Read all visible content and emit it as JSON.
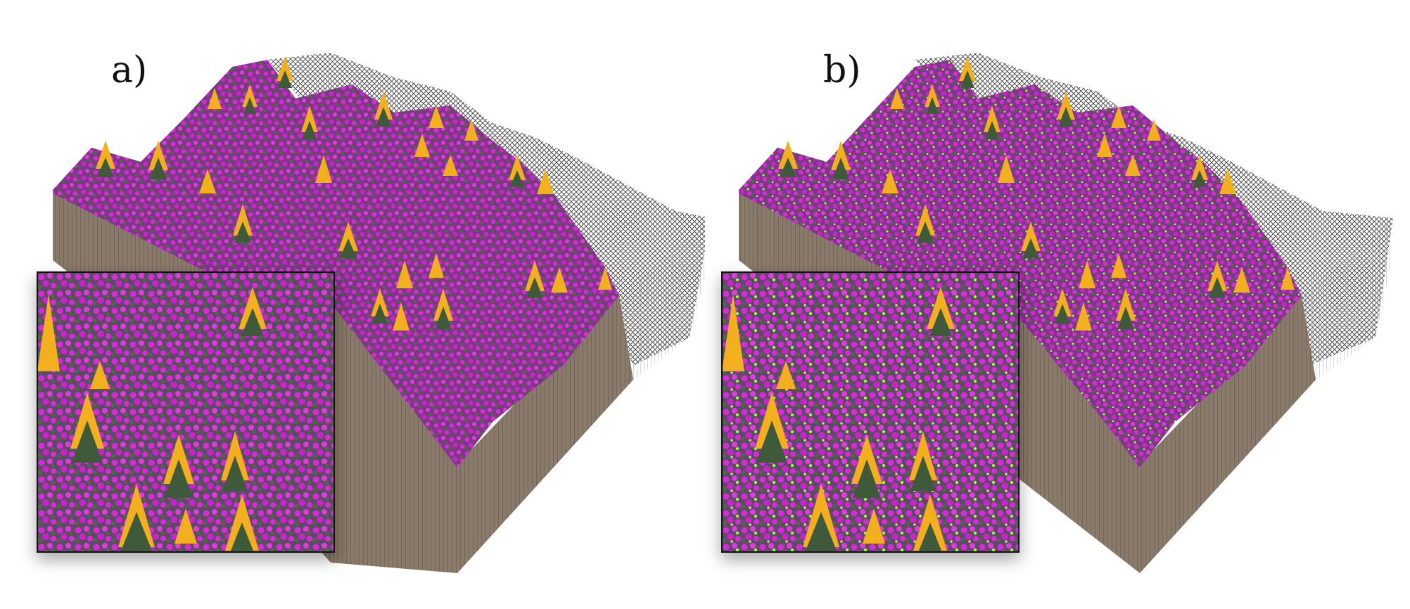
{
  "panels": [
    {
      "id": "a",
      "label": "a)"
    },
    {
      "id": "b",
      "label": "b)"
    }
  ],
  "colors": {
    "flower_magenta": "#d92ad9",
    "tree_yellow": "#f2b01e",
    "tree_green": "#3e5a3a",
    "ground_green": "#5d6e4e",
    "soil_side": "#8a7a6a",
    "wire_black": "#1a1a1a",
    "wire_grey": "#8c8c8c",
    "highlight_green": "#9aff3a"
  }
}
